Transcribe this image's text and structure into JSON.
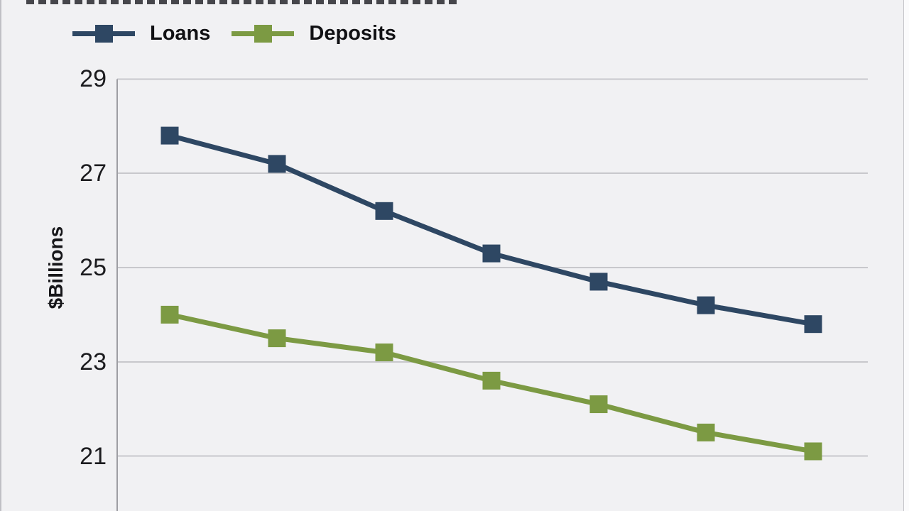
{
  "chart_data": {
    "type": "line",
    "series": [
      {
        "name": "Loans",
        "color": "#2E4763",
        "values": [
          27.8,
          27.2,
          26.2,
          25.3,
          24.7,
          24.2,
          23.8
        ]
      },
      {
        "name": "Deposits",
        "color": "#7C9A43",
        "values": [
          24.0,
          23.5,
          23.2,
          22.6,
          22.1,
          21.5,
          21.1
        ]
      }
    ],
    "ylabel": "$Billions",
    "yticks": [
      29,
      27,
      25,
      23,
      21
    ],
    "ylim_visible": [
      19.8,
      29.1
    ],
    "grid": true,
    "legend_position": "top-left",
    "marker_shape": "square",
    "x_axis": "cut off below visible area",
    "colors": {
      "background": "#F1F1F3",
      "gridline": "#C8C8CC",
      "axis": "#9E9EA3",
      "tick_text": "#1B1B1E"
    }
  }
}
